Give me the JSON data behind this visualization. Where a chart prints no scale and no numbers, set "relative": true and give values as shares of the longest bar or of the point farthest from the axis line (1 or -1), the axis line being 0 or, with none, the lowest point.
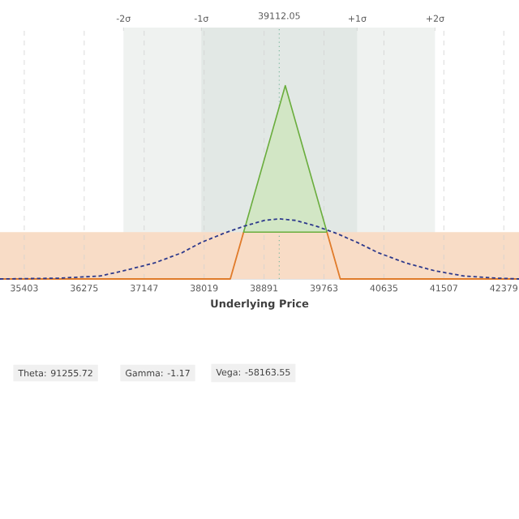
{
  "chart_data": {
    "type": "line",
    "relative": true,
    "xlabel": "Underlying Price",
    "xlim": [
      35050,
      42600
    ],
    "xticks": [
      35403,
      36275,
      37147,
      38019,
      38891,
      39763,
      40635,
      41507,
      42379
    ],
    "x2lim": [
      -3.585,
      3.078
    ],
    "x2ticks": [
      {
        "value": -2,
        "label": "-2σ"
      },
      {
        "value": -1,
        "label": "-1σ"
      },
      {
        "value": 1,
        "label": "+1σ"
      },
      {
        "value": 2,
        "label": "+2σ"
      }
    ],
    "grid": "x",
    "bands": [
      {
        "axis": "x",
        "from": 36846,
        "to": 41378,
        "color": "#eff2f0"
      },
      {
        "axis": "x",
        "from": 37979,
        "to": 40245,
        "color": "#e2e8e5"
      },
      {
        "axis": "y",
        "from": 0,
        "to": 0.242,
        "color": "#f8dcc6"
      }
    ],
    "ref_lines": [
      {
        "axis": "x",
        "value": 39112.05,
        "label": "39112.05",
        "color": "#7fb8a0",
        "line_style": "dotted"
      }
    ],
    "series": [
      {
        "type": "line",
        "color": "#e07b2a",
        "x": [
          35050,
          38400,
          38594
        ],
        "values": [
          0,
          0,
          0.242
        ]
      },
      {
        "type": "area",
        "color": "#6aad3d",
        "x": [
          38594,
          39200,
          39806
        ],
        "values": [
          0.242,
          1,
          0.242
        ]
      },
      {
        "type": "line",
        "color": "#e07b2a",
        "x": [
          39806,
          40000,
          42600
        ],
        "values": [
          0.242,
          0,
          0
        ]
      },
      {
        "type": "line",
        "color": "#2e3a8c",
        "line_style": "dashed",
        "x": [
          35050,
          35900,
          36500,
          36846,
          37300,
          37700,
          37979,
          38300,
          38600,
          38900,
          39112,
          39350,
          39650,
          39950,
          40245,
          40550,
          40950,
          41378,
          41800,
          42300,
          42600
        ],
        "values": [
          0,
          0.004,
          0.015,
          0.042,
          0.083,
          0.136,
          0.189,
          0.235,
          0.273,
          0.303,
          0.311,
          0.303,
          0.273,
          0.235,
          0.189,
          0.136,
          0.083,
          0.042,
          0.015,
          0.004,
          0
        ]
      }
    ],
    "annotations": [
      "Theta: 91255.72",
      "Gamma: -1.17",
      "Vega: -58163.55"
    ]
  }
}
